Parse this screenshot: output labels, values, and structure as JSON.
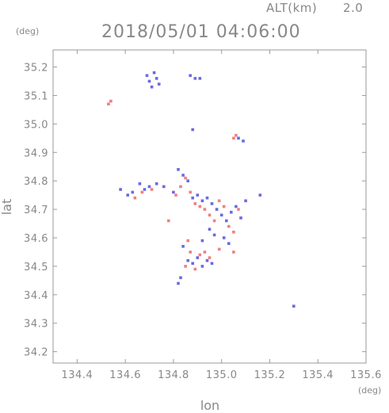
{
  "chart_data": {
    "type": "scatter",
    "title": "2018/05/01 04:06:00",
    "header_label": "ALT(km)",
    "header_value": "2.0",
    "xlabel": "lon",
    "ylabel": "lat",
    "x_unit": "(deg)",
    "y_unit": "(deg)",
    "xlim": [
      134.3,
      135.6
    ],
    "ylim": [
      34.16,
      35.26
    ],
    "xticks": [
      134.4,
      134.6,
      134.8,
      135.0,
      135.2,
      135.4,
      135.6
    ],
    "xtick_labels": [
      "134.4",
      "134.6",
      "134.8",
      "135.0",
      "135.2",
      "135.4",
      "135.6"
    ],
    "yticks": [
      34.2,
      34.3,
      34.4,
      34.5,
      34.6,
      34.7,
      34.8,
      34.9,
      35.0,
      35.1,
      35.2
    ],
    "ytick_labels": [
      "34.2",
      "34.3",
      "34.4",
      "34.5",
      "34.6",
      "34.7",
      "34.8",
      "34.9",
      "35.0",
      "35.1",
      "35.2"
    ],
    "grid": false,
    "colors": {
      "positive": "#f08080",
      "negative": "#6a6ae0",
      "frame": "#9a9a9a",
      "text": "#888888"
    },
    "series": [
      {
        "color": "negative",
        "points": [
          [
            134.69,
            35.17
          ],
          [
            134.7,
            35.15
          ],
          [
            134.71,
            35.13
          ],
          [
            134.72,
            35.18
          ],
          [
            134.73,
            35.16
          ],
          [
            134.74,
            35.14
          ],
          [
            134.87,
            35.17
          ],
          [
            134.89,
            35.16
          ],
          [
            134.91,
            35.16
          ],
          [
            134.88,
            34.98
          ],
          [
            135.07,
            34.95
          ],
          [
            135.09,
            34.94
          ],
          [
            134.58,
            34.77
          ],
          [
            134.61,
            34.75
          ],
          [
            134.63,
            34.76
          ],
          [
            134.66,
            34.79
          ],
          [
            134.68,
            34.77
          ],
          [
            134.7,
            34.78
          ],
          [
            134.73,
            34.79
          ],
          [
            134.76,
            34.78
          ],
          [
            134.8,
            34.76
          ],
          [
            134.82,
            34.84
          ],
          [
            134.84,
            34.82
          ],
          [
            134.86,
            34.8
          ],
          [
            134.88,
            34.74
          ],
          [
            134.9,
            34.75
          ],
          [
            134.92,
            34.73
          ],
          [
            134.94,
            34.74
          ],
          [
            134.96,
            34.72
          ],
          [
            134.98,
            34.7
          ],
          [
            135.0,
            34.68
          ],
          [
            135.02,
            34.66
          ],
          [
            135.04,
            34.69
          ],
          [
            135.06,
            34.71
          ],
          [
            135.08,
            34.67
          ],
          [
            135.1,
            34.73
          ],
          [
            134.95,
            34.63
          ],
          [
            134.97,
            34.61
          ],
          [
            135.01,
            34.6
          ],
          [
            135.03,
            34.58
          ],
          [
            134.84,
            34.57
          ],
          [
            134.92,
            34.59
          ],
          [
            134.86,
            34.52
          ],
          [
            134.88,
            34.51
          ],
          [
            134.9,
            34.53
          ],
          [
            134.92,
            34.5
          ],
          [
            134.94,
            34.52
          ],
          [
            134.96,
            34.51
          ],
          [
            134.83,
            34.46
          ],
          [
            134.82,
            34.44
          ],
          [
            135.16,
            34.75
          ],
          [
            135.3,
            34.36
          ]
        ]
      },
      {
        "color": "positive",
        "points": [
          [
            134.53,
            35.07
          ],
          [
            134.54,
            35.08
          ],
          [
            135.05,
            34.95
          ],
          [
            135.06,
            34.96
          ],
          [
            134.64,
            34.74
          ],
          [
            134.67,
            34.76
          ],
          [
            134.71,
            34.77
          ],
          [
            134.78,
            34.66
          ],
          [
            134.81,
            34.75
          ],
          [
            134.83,
            34.78
          ],
          [
            134.85,
            34.81
          ],
          [
            134.87,
            34.76
          ],
          [
            134.89,
            34.72
          ],
          [
            134.91,
            34.71
          ],
          [
            134.93,
            34.7
          ],
          [
            134.95,
            34.68
          ],
          [
            134.97,
            34.66
          ],
          [
            134.99,
            34.73
          ],
          [
            135.01,
            34.71
          ],
          [
            135.03,
            34.64
          ],
          [
            135.05,
            34.62
          ],
          [
            135.07,
            34.7
          ],
          [
            134.99,
            34.56
          ],
          [
            135.05,
            34.55
          ],
          [
            134.87,
            34.55
          ],
          [
            134.85,
            34.5
          ],
          [
            134.89,
            34.49
          ],
          [
            134.91,
            34.54
          ],
          [
            134.93,
            34.55
          ],
          [
            134.95,
            34.53
          ],
          [
            134.86,
            34.59
          ]
        ]
      }
    ]
  }
}
